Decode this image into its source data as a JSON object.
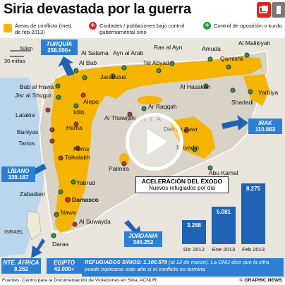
{
  "title": "Siria devastada por la guerra",
  "legend": {
    "conflict_label": "Áreas de conflicto (med. de feb 2013)",
    "gov_symbol": "+",
    "gov_label": "Ciudades / poblaciones bajo control gubernamental sirio",
    "opp_symbol": "+",
    "opp_label": "Control de oposición o kurdo"
  },
  "scale": {
    "km": "50km",
    "miles": "30 millas"
  },
  "countries": {
    "turkey": {
      "name": "TURQUÍA",
      "refugees": "258.000+"
    },
    "iraq": {
      "name": "IRAK",
      "refugees": "110.663"
    },
    "lebanon": {
      "name": "LÍBANO",
      "refugees": "339.187"
    },
    "jordan": {
      "name": "JORDANIA",
      "refugees": "340.252"
    },
    "north_africa": {
      "name": "NTE. ÁFRICA",
      "refugees": "8.262"
    },
    "egypt": {
      "name": "EGIPTO",
      "refugees": "43.000+"
    },
    "syria_label": "SIRIA",
    "israel_label": "ISRAEL"
  },
  "cities": {
    "al_salama": "Al Salama",
    "ayn_al_arab": "Ayn al Arab",
    "ras_al_ayn": "Ras al Ayn",
    "al_malikiyah": "Al Malikiyah",
    "amuda": "Amuda",
    "al_bab": "Al Bab",
    "tel_abyad": "Tel Abyad",
    "qamishli": "Qamishli",
    "yarbiya": "Yarbiya",
    "bab_al_hawa": "Bab al Hawa",
    "jarabulus": "Jarabulus",
    "al_hasakah": "Al Hasakah",
    "jisr_al_shugur": "Jisr al Shugur",
    "shadadi": "Shadadi",
    "aleppo": "Alepo",
    "idlib": "Idlib",
    "latakia": "Latakia",
    "al_thawrah": "Al Thawrah",
    "ar_raqqah": "Ar Raqqah",
    "hama": "Hama",
    "deir_az_zawr": "Deir az Zawr",
    "baniyas": "Baniyas",
    "mayadin": "Mayadin",
    "tartus": "Tartus",
    "homs": "Homs",
    "abu_kamal": "Abu Kamal",
    "talkalakh": "Talkalakh",
    "palmyra": "Palmira",
    "yabrud": "Yabrud",
    "zabadani": "Zabadani",
    "damascus": "Damasco",
    "nawa": "Nawa",
    "al_suwayda": "Al Suwayda",
    "daraa": "Daraa"
  },
  "chart_data": {
    "type": "bar",
    "title": "ACELERACIÓN DEL ÉXODO",
    "subtitle": "Nuevos refugiados por día",
    "categories": [
      "Dic 2012",
      "Ene 2013",
      "Feb 2013"
    ],
    "values": [
      3288,
      5081,
      8275
    ],
    "value_labels": [
      "3.288",
      "5.081",
      "8.275"
    ],
    "ylim": [
      0,
      8275
    ],
    "color": "#1f63b4"
  },
  "refugees_box": {
    "label": "REFUGIADOS SIRIOS:",
    "total": "1.100.579",
    "date_note": "(al 12 de marzo).",
    "text1": "La ONU dice",
    "text2": "que la cifra puede triplicarse este año si el conflicto no termina"
  },
  "footer": {
    "source": "Fuentes: Centro para la Documentación de Violaciones en Siria, ACNUR",
    "credit": "© GRAPHIC NEWS"
  },
  "colors": {
    "conflict": "#f5b400",
    "blue": "#1f63b4",
    "box_blue": "#2d7fd3",
    "gov_red": "#d32f2f",
    "opp_green": "#2e9b3e",
    "land": "#e9e4dc",
    "sea": "#b9d6ec"
  }
}
